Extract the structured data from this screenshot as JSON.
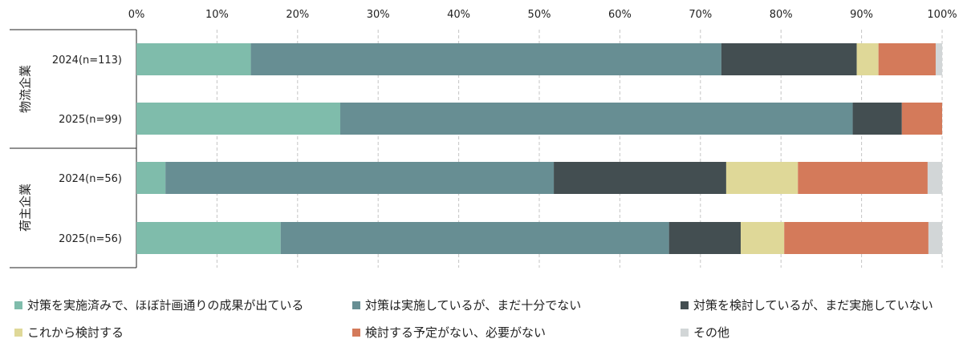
{
  "chart_data": {
    "type": "bar",
    "orientation": "horizontal",
    "stacked": true,
    "title": "",
    "xlabel": "",
    "ylabel": "",
    "xlim": [
      0,
      100
    ],
    "x_ticks": [
      "0%",
      "10%",
      "20%",
      "30%",
      "40%",
      "50%",
      "60%",
      "70%",
      "80%",
      "90%",
      "100%"
    ],
    "x_axis_position": "top",
    "grid": true,
    "legend_position": "bottom",
    "groups": [
      {
        "label": "物流企業",
        "rows": [
          0,
          1
        ]
      },
      {
        "label": "荷主企業",
        "rows": [
          2,
          3
        ]
      }
    ],
    "categories": [
      "2024(n=113)",
      "2025(n=99)",
      "2024(n=56)",
      "2025(n=56)"
    ],
    "series": [
      {
        "name": "対策を実施済みで、ほぼ計画通りの成果が出ている",
        "color": "#7fbcab",
        "values": [
          14.2,
          25.3,
          3.6,
          17.9
        ]
      },
      {
        "name": "対策は実施しているが、まだ十分でない",
        "color": "#678e93",
        "values": [
          58.4,
          63.6,
          48.2,
          48.2
        ]
      },
      {
        "name": "対策を検討しているが、まだ実施していない",
        "color": "#434e51",
        "values": [
          16.8,
          6.1,
          21.4,
          8.9
        ]
      },
      {
        "name": "これから検討する",
        "color": "#dfd898",
        "values": [
          2.7,
          0.0,
          8.9,
          5.4
        ]
      },
      {
        "name": "検討する予定がない、必要がない",
        "color": "#d47a5a",
        "values": [
          7.1,
          5.1,
          16.1,
          17.9
        ]
      },
      {
        "name": "その他",
        "color": "#d2d6d7",
        "values": [
          0.9,
          0.0,
          1.8,
          1.8
        ]
      }
    ]
  }
}
